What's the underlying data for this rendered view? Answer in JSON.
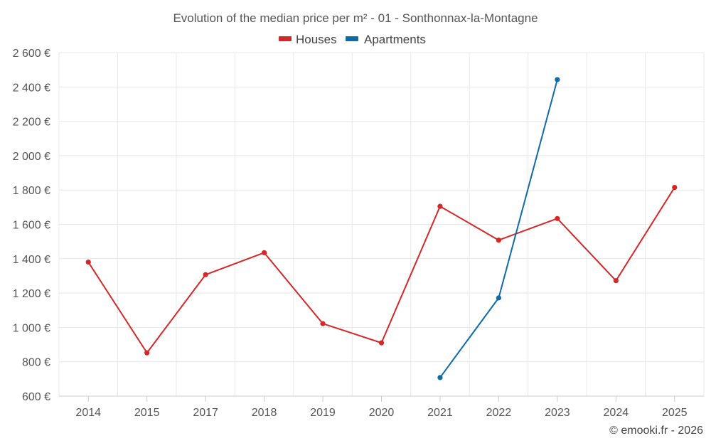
{
  "chart_data": {
    "type": "line",
    "title": "Evolution of the median price per m² - 01 - Sonthonnax-la-Montagne",
    "categories": [
      "2014",
      "2015",
      "2017",
      "2018",
      "2019",
      "2020",
      "2021",
      "2022",
      "2023",
      "2024",
      "2025"
    ],
    "y_ticks": [
      600,
      800,
      1000,
      1200,
      1400,
      1600,
      1800,
      2000,
      2200,
      2400,
      2600
    ],
    "y_tick_labels": [
      "600 €",
      "800 €",
      "1 000 €",
      "1 200 €",
      "1 400 €",
      "1 600 €",
      "1 800 €",
      "2 000 €",
      "2 200 €",
      "2 400 €",
      "2 600 €"
    ],
    "ylim": [
      600,
      2600
    ],
    "grid": true,
    "legend_position": "top-center",
    "series": [
      {
        "name": "Houses",
        "color": "#d62728",
        "values": [
          1380,
          852,
          1307,
          1435,
          1022,
          910,
          1705,
          1508,
          1634,
          1272,
          1815
        ]
      },
      {
        "name": "Apartments",
        "color": "#0e6ba8",
        "values": [
          null,
          null,
          null,
          null,
          null,
          null,
          708,
          1172,
          2443,
          null,
          null
        ]
      }
    ],
    "credit": "© emooki.fr - 2026"
  }
}
